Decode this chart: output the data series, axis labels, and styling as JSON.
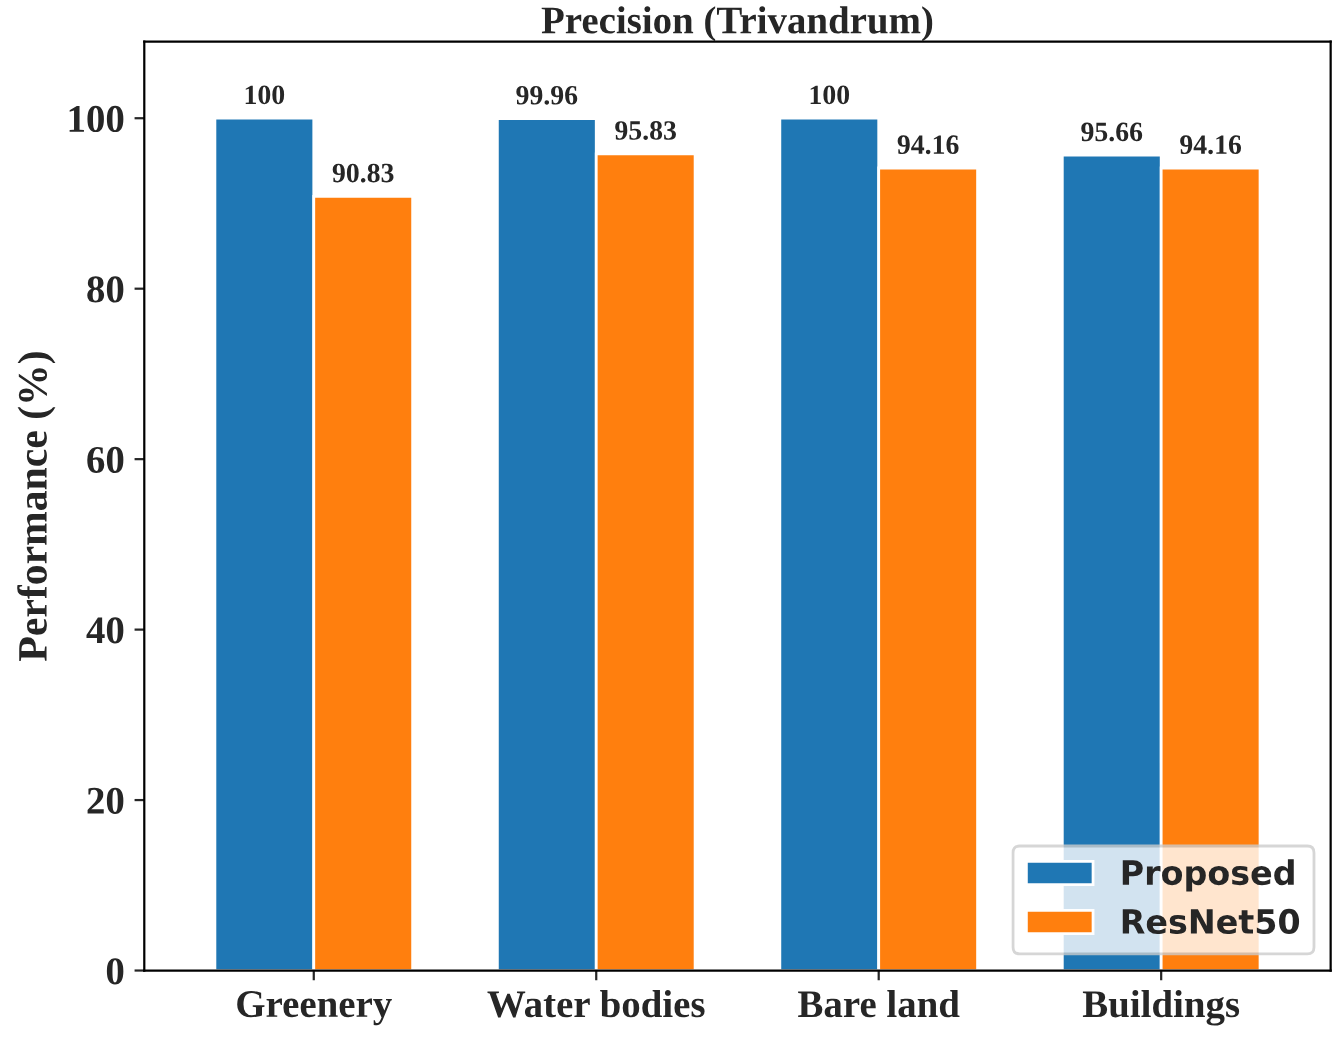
{
  "chart_data": {
    "type": "bar",
    "title": "Precision (Trivandrum)",
    "ylabel": "Performance (%)",
    "categories": [
      "Greenery",
      "Water bodies",
      "Bare land",
      "Buildings"
    ],
    "series": [
      {
        "name": "Proposed",
        "color": "#1f77b4",
        "values": [
          100,
          99.96,
          100,
          95.66
        ]
      },
      {
        "name": "ResNet50",
        "color": "#ff7f0e",
        "values": [
          90.83,
          95.83,
          94.16,
          94.16
        ]
      }
    ],
    "ylim": [
      0,
      109
    ],
    "yticks": [
      0,
      20,
      40,
      60,
      80,
      100
    ],
    "data_labels": true,
    "legend": "bottom right",
    "grid": false
  }
}
